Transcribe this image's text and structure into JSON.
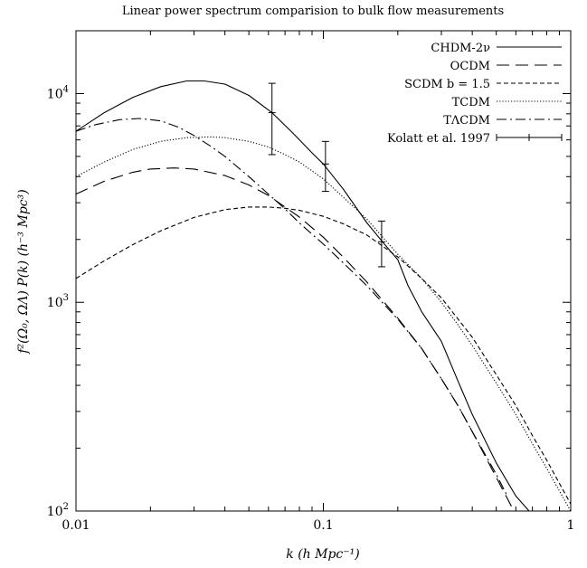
{
  "chart_data": {
    "type": "line",
    "title": "Linear power spectrum comparision to bulk flow measurements",
    "xlabel": "k (h Mpc⁻¹)",
    "ylabel": "f²(Ω₀, ΩΛ) P(k) (h⁻³ Mpc³)",
    "xscale": "log",
    "yscale": "log",
    "xlim": [
      0.01,
      1
    ],
    "ylim": [
      100,
      20000
    ],
    "xticks": [
      {
        "value": 0.01,
        "label": "0.01"
      },
      {
        "value": 0.1,
        "label": "0.1"
      },
      {
        "value": 1,
        "label": "1"
      }
    ],
    "yticks": [
      {
        "value": 100,
        "base": "10",
        "exp": "2"
      },
      {
        "value": 1000,
        "base": "10",
        "exp": "3"
      },
      {
        "value": 10000,
        "base": "10",
        "exp": "4"
      }
    ],
    "legend_position": "top-right",
    "series": [
      {
        "name": "CHDM-2ν",
        "dash": "solid",
        "x": [
          0.01,
          0.013,
          0.017,
          0.022,
          0.028,
          0.033,
          0.04,
          0.05,
          0.062,
          0.075,
          0.09,
          0.1,
          0.12,
          0.15,
          0.18,
          0.2,
          0.22,
          0.25,
          0.3,
          0.35,
          0.4,
          0.5,
          0.6,
          0.7
        ],
        "y": [
          6600,
          8100,
          9600,
          10800,
          11500,
          11500,
          11100,
          9800,
          8100,
          6500,
          5200,
          4600,
          3500,
          2400,
          1850,
          1600,
          1200,
          900,
          650,
          420,
          290,
          170,
          118,
          96
        ]
      },
      {
        "name": "OCDM",
        "dash": "longdash",
        "x": [
          0.01,
          0.013,
          0.017,
          0.02,
          0.025,
          0.03,
          0.04,
          0.05,
          0.06,
          0.08,
          0.1,
          0.12,
          0.15,
          0.2,
          0.25,
          0.3,
          0.35,
          0.4,
          0.5,
          0.6
        ],
        "y": [
          3300,
          3800,
          4200,
          4350,
          4400,
          4350,
          4050,
          3650,
          3250,
          2560,
          2050,
          1650,
          1250,
          840,
          600,
          430,
          320,
          240,
          145,
          96
        ]
      },
      {
        "name": "SCDM b = 1.5",
        "dash": "shortdash",
        "x": [
          0.01,
          0.013,
          0.017,
          0.022,
          0.03,
          0.04,
          0.05,
          0.06,
          0.07,
          0.08,
          0.1,
          0.12,
          0.15,
          0.2,
          0.25,
          0.3,
          0.4,
          0.5,
          0.6,
          0.7,
          0.8,
          1.0
        ],
        "y": [
          1300,
          1580,
          1890,
          2200,
          2550,
          2780,
          2860,
          2860,
          2820,
          2760,
          2580,
          2380,
          2100,
          1650,
          1300,
          1050,
          680,
          450,
          320,
          230,
          175,
          108
        ]
      },
      {
        "name": "TCDM",
        "dash": "dotted",
        "x": [
          0.01,
          0.013,
          0.017,
          0.022,
          0.028,
          0.035,
          0.04,
          0.05,
          0.06,
          0.07,
          0.08,
          0.1,
          0.12,
          0.15,
          0.2,
          0.25,
          0.3,
          0.35,
          0.4,
          0.5,
          0.6,
          0.7,
          0.8,
          1.0
        ],
        "y": [
          4000,
          4700,
          5400,
          5900,
          6150,
          6200,
          6150,
          5900,
          5550,
          5100,
          4700,
          3900,
          3200,
          2500,
          1700,
          1300,
          1000,
          780,
          620,
          410,
          290,
          210,
          160,
          100
        ]
      },
      {
        "name": "TΛCDM",
        "dash": "dashdot",
        "x": [
          0.01,
          0.012,
          0.015,
          0.018,
          0.022,
          0.026,
          0.03,
          0.035,
          0.04,
          0.05,
          0.06,
          0.07,
          0.08,
          0.1,
          0.12,
          0.15,
          0.2,
          0.25,
          0.3,
          0.35,
          0.4,
          0.5,
          0.55
        ],
        "y": [
          6600,
          7100,
          7500,
          7600,
          7400,
          6900,
          6300,
          5600,
          5000,
          4000,
          3300,
          2800,
          2400,
          1900,
          1550,
          1200,
          830,
          600,
          430,
          320,
          240,
          150,
          120
        ]
      }
    ],
    "errorbars": {
      "name": "Kolatt et al. 1997",
      "points": [
        {
          "x": 0.062,
          "y": 8100,
          "ylow": 5100,
          "yhigh": 11200
        },
        {
          "x": 0.102,
          "y": 4600,
          "ylow": 3400,
          "yhigh": 5900
        },
        {
          "x": 0.172,
          "y": 1950,
          "ylow": 1480,
          "yhigh": 2450
        }
      ]
    }
  }
}
